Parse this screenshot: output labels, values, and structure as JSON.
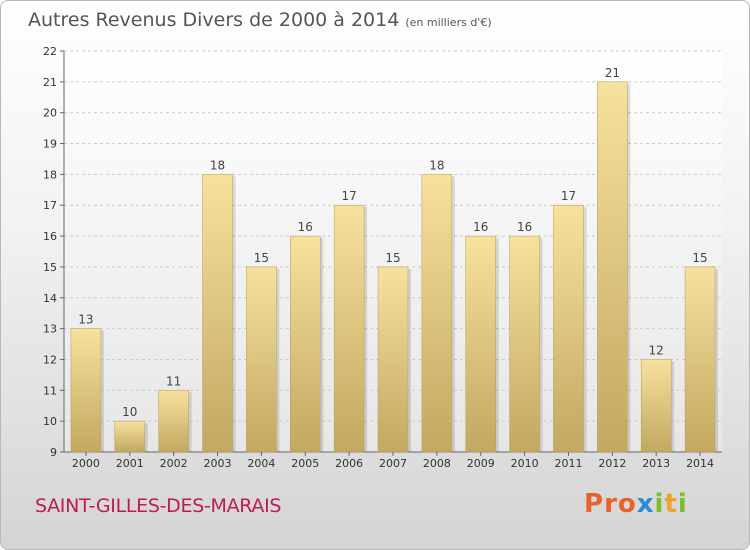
{
  "title": "Autres Revenus Divers de 2000 à 2014",
  "unit": "(en milliers d'€)",
  "footer": {
    "commune": "SAINT-GILLES-DES-MARAIS",
    "logo": "Proxiti"
  },
  "colors": {
    "bar_top": "#f6e19d",
    "bar_bottom": "#c2a861",
    "logo_p": "#e8622a",
    "logo_x": "#2a8cd8",
    "logo_i": "#7bbd2a"
  },
  "chart_data": {
    "type": "bar",
    "categories": [
      "2000",
      "2001",
      "2002",
      "2003",
      "2004",
      "2005",
      "2006",
      "2007",
      "2008",
      "2009",
      "2010",
      "2011",
      "2012",
      "2013",
      "2014"
    ],
    "values": [
      13,
      10,
      11,
      18,
      15,
      16,
      17,
      15,
      18,
      16,
      16,
      17,
      21,
      12,
      15
    ],
    "ylim": [
      9,
      22
    ],
    "yticks": [
      9,
      10,
      11,
      12,
      13,
      14,
      15,
      16,
      17,
      18,
      19,
      20,
      21,
      22
    ],
    "grid": true,
    "title": "Autres Revenus Divers de 2000 à 2014",
    "xlabel": "",
    "ylabel": ""
  }
}
